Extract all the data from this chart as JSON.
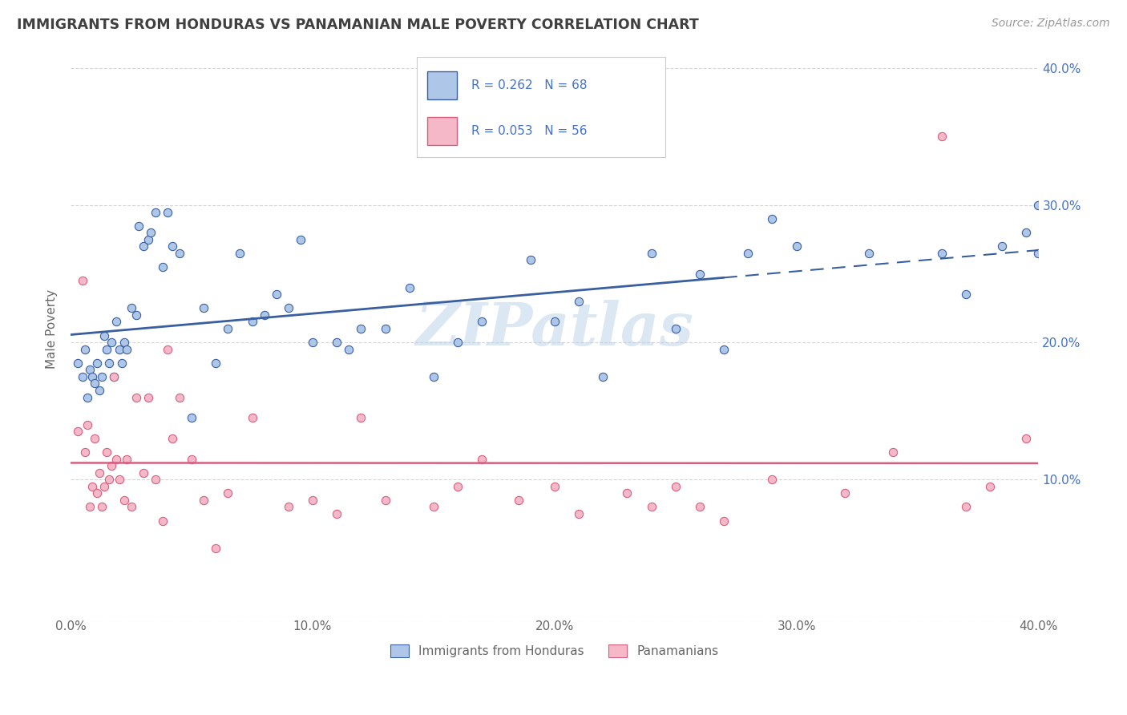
{
  "title": "IMMIGRANTS FROM HONDURAS VS PANAMANIAN MALE POVERTY CORRELATION CHART",
  "source": "Source: ZipAtlas.com",
  "ylabel": "Male Poverty",
  "xlim": [
    0.0,
    0.4
  ],
  "ylim": [
    0.0,
    0.42
  ],
  "xticks": [
    0.0,
    0.1,
    0.2,
    0.3,
    0.4
  ],
  "yticks": [
    0.0,
    0.1,
    0.2,
    0.3,
    0.4
  ],
  "xticklabels": [
    "0.0%",
    "10.0%",
    "20.0%",
    "30.0%",
    "40.0%"
  ],
  "yticklabels": [
    "",
    "10.0%",
    "20.0%",
    "30.0%",
    "40.0%"
  ],
  "series1_color": "#aec6e8",
  "series2_color": "#f5b8c8",
  "line1_color": "#3a5fa0",
  "line2_color": "#d46080",
  "line1_solid_end": 0.27,
  "legend_R1": "R = 0.262",
  "legend_N1": "N = 68",
  "legend_R2": "R = 0.053",
  "legend_N2": "N = 56",
  "legend_label1": "Immigrants from Honduras",
  "legend_label2": "Panamanians",
  "watermark": "ZIPatlas",
  "title_color": "#404040",
  "axis_color": "#666666",
  "grid_color": "#cccccc",
  "legend_text_color": "#4472c4",
  "blue_line_intercept": 0.185,
  "blue_line_slope": 0.21,
  "pink_line_intercept": 0.115,
  "pink_line_slope": 0.075,
  "series1_x": [
    0.003,
    0.005,
    0.006,
    0.007,
    0.008,
    0.009,
    0.01,
    0.011,
    0.012,
    0.013,
    0.014,
    0.015,
    0.016,
    0.017,
    0.018,
    0.019,
    0.02,
    0.021,
    0.022,
    0.023,
    0.025,
    0.027,
    0.028,
    0.03,
    0.032,
    0.033,
    0.035,
    0.038,
    0.04,
    0.042,
    0.045,
    0.05,
    0.055,
    0.06,
    0.065,
    0.07,
    0.075,
    0.08,
    0.085,
    0.09,
    0.095,
    0.1,
    0.11,
    0.115,
    0.12,
    0.13,
    0.14,
    0.15,
    0.16,
    0.17,
    0.19,
    0.2,
    0.21,
    0.22,
    0.24,
    0.25,
    0.26,
    0.27,
    0.28,
    0.29,
    0.3,
    0.33,
    0.36,
    0.37,
    0.385,
    0.395,
    0.4,
    0.4
  ],
  "series1_y": [
    0.185,
    0.175,
    0.195,
    0.16,
    0.18,
    0.175,
    0.17,
    0.185,
    0.165,
    0.175,
    0.205,
    0.195,
    0.185,
    0.2,
    0.175,
    0.215,
    0.195,
    0.185,
    0.2,
    0.195,
    0.225,
    0.22,
    0.285,
    0.27,
    0.275,
    0.28,
    0.295,
    0.255,
    0.295,
    0.27,
    0.265,
    0.145,
    0.225,
    0.185,
    0.21,
    0.265,
    0.215,
    0.22,
    0.235,
    0.225,
    0.275,
    0.2,
    0.2,
    0.195,
    0.21,
    0.21,
    0.24,
    0.175,
    0.2,
    0.215,
    0.26,
    0.215,
    0.23,
    0.175,
    0.265,
    0.21,
    0.25,
    0.195,
    0.265,
    0.29,
    0.27,
    0.265,
    0.265,
    0.235,
    0.27,
    0.28,
    0.265,
    0.3
  ],
  "series2_x": [
    0.003,
    0.005,
    0.006,
    0.007,
    0.008,
    0.009,
    0.01,
    0.011,
    0.012,
    0.013,
    0.014,
    0.015,
    0.016,
    0.017,
    0.018,
    0.019,
    0.02,
    0.022,
    0.023,
    0.025,
    0.027,
    0.03,
    0.032,
    0.035,
    0.038,
    0.04,
    0.042,
    0.045,
    0.05,
    0.055,
    0.06,
    0.065,
    0.075,
    0.09,
    0.1,
    0.11,
    0.12,
    0.13,
    0.15,
    0.16,
    0.17,
    0.185,
    0.2,
    0.21,
    0.23,
    0.24,
    0.25,
    0.26,
    0.27,
    0.29,
    0.32,
    0.34,
    0.36,
    0.37,
    0.38,
    0.395
  ],
  "series2_y": [
    0.135,
    0.245,
    0.12,
    0.14,
    0.08,
    0.095,
    0.13,
    0.09,
    0.105,
    0.08,
    0.095,
    0.12,
    0.1,
    0.11,
    0.175,
    0.115,
    0.1,
    0.085,
    0.115,
    0.08,
    0.16,
    0.105,
    0.16,
    0.1,
    0.07,
    0.195,
    0.13,
    0.16,
    0.115,
    0.085,
    0.05,
    0.09,
    0.145,
    0.08,
    0.085,
    0.075,
    0.145,
    0.085,
    0.08,
    0.095,
    0.115,
    0.085,
    0.095,
    0.075,
    0.09,
    0.08,
    0.095,
    0.08,
    0.07,
    0.1,
    0.09,
    0.12,
    0.35,
    0.08,
    0.095,
    0.13
  ]
}
